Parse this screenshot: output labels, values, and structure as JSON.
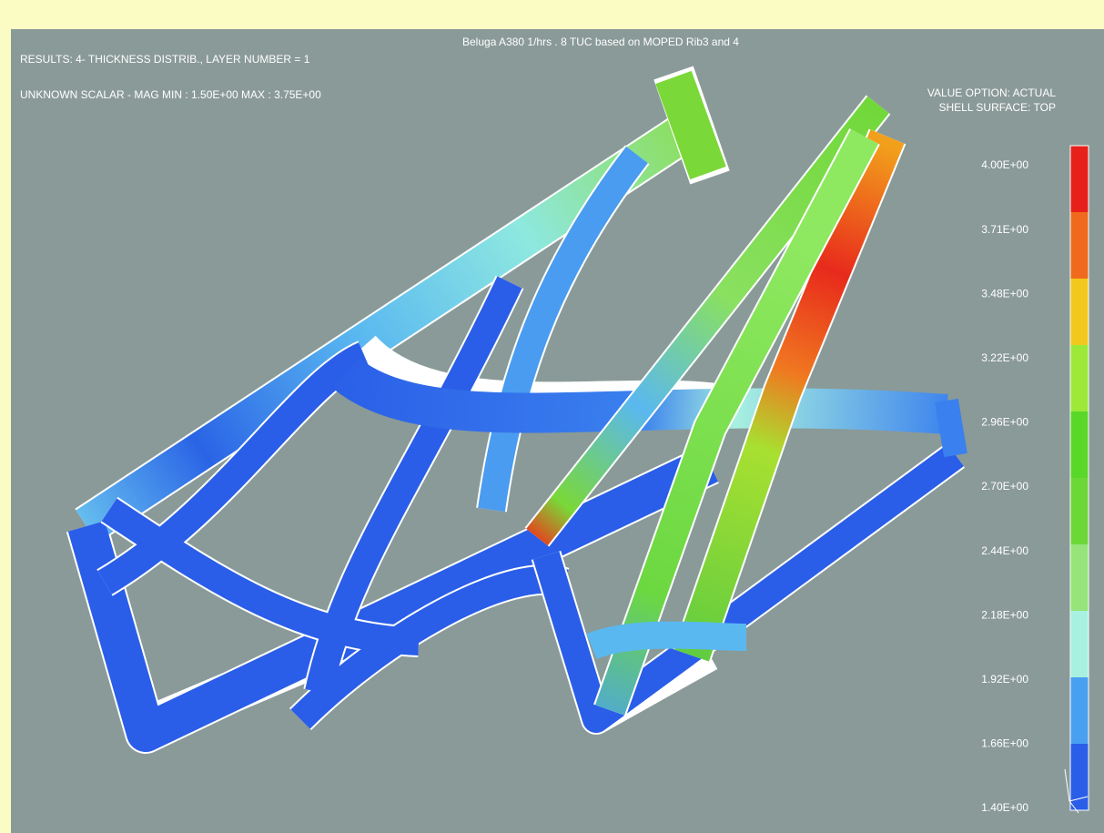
{
  "header": {
    "title": "Beluga A380 1/hrs . 8 TUC based on MOPED Rib3 and 4",
    "results": "RESULTS: 4- THICKNESS DISTRIB., LAYER NUMBER = 1",
    "scalar": "UNKNOWN SCALAR - MAG MIN : 1.50E+00 MAX : 3.75E+00",
    "value_option": "VALUE OPTION: ACTUAL",
    "shell_surface": "SHELL SURFACE: TOP"
  },
  "legend": {
    "labels": [
      "4.00E+00",
      "3.71E+00",
      "3.48E+00",
      "3.22E+00",
      "2.96E+00",
      "2.70E+00",
      "2.44E+00",
      "2.18E+00",
      "1.92E+00",
      "1.66E+00",
      "1.40E+00"
    ],
    "colors": [
      "#e8201c",
      "#ef6a1c",
      "#f2c81c",
      "#9ee83a",
      "#5ad82a",
      "#6cd838",
      "#96e47a",
      "#a8f0e0",
      "#4aa0f0",
      "#2a5ee8"
    ]
  }
}
